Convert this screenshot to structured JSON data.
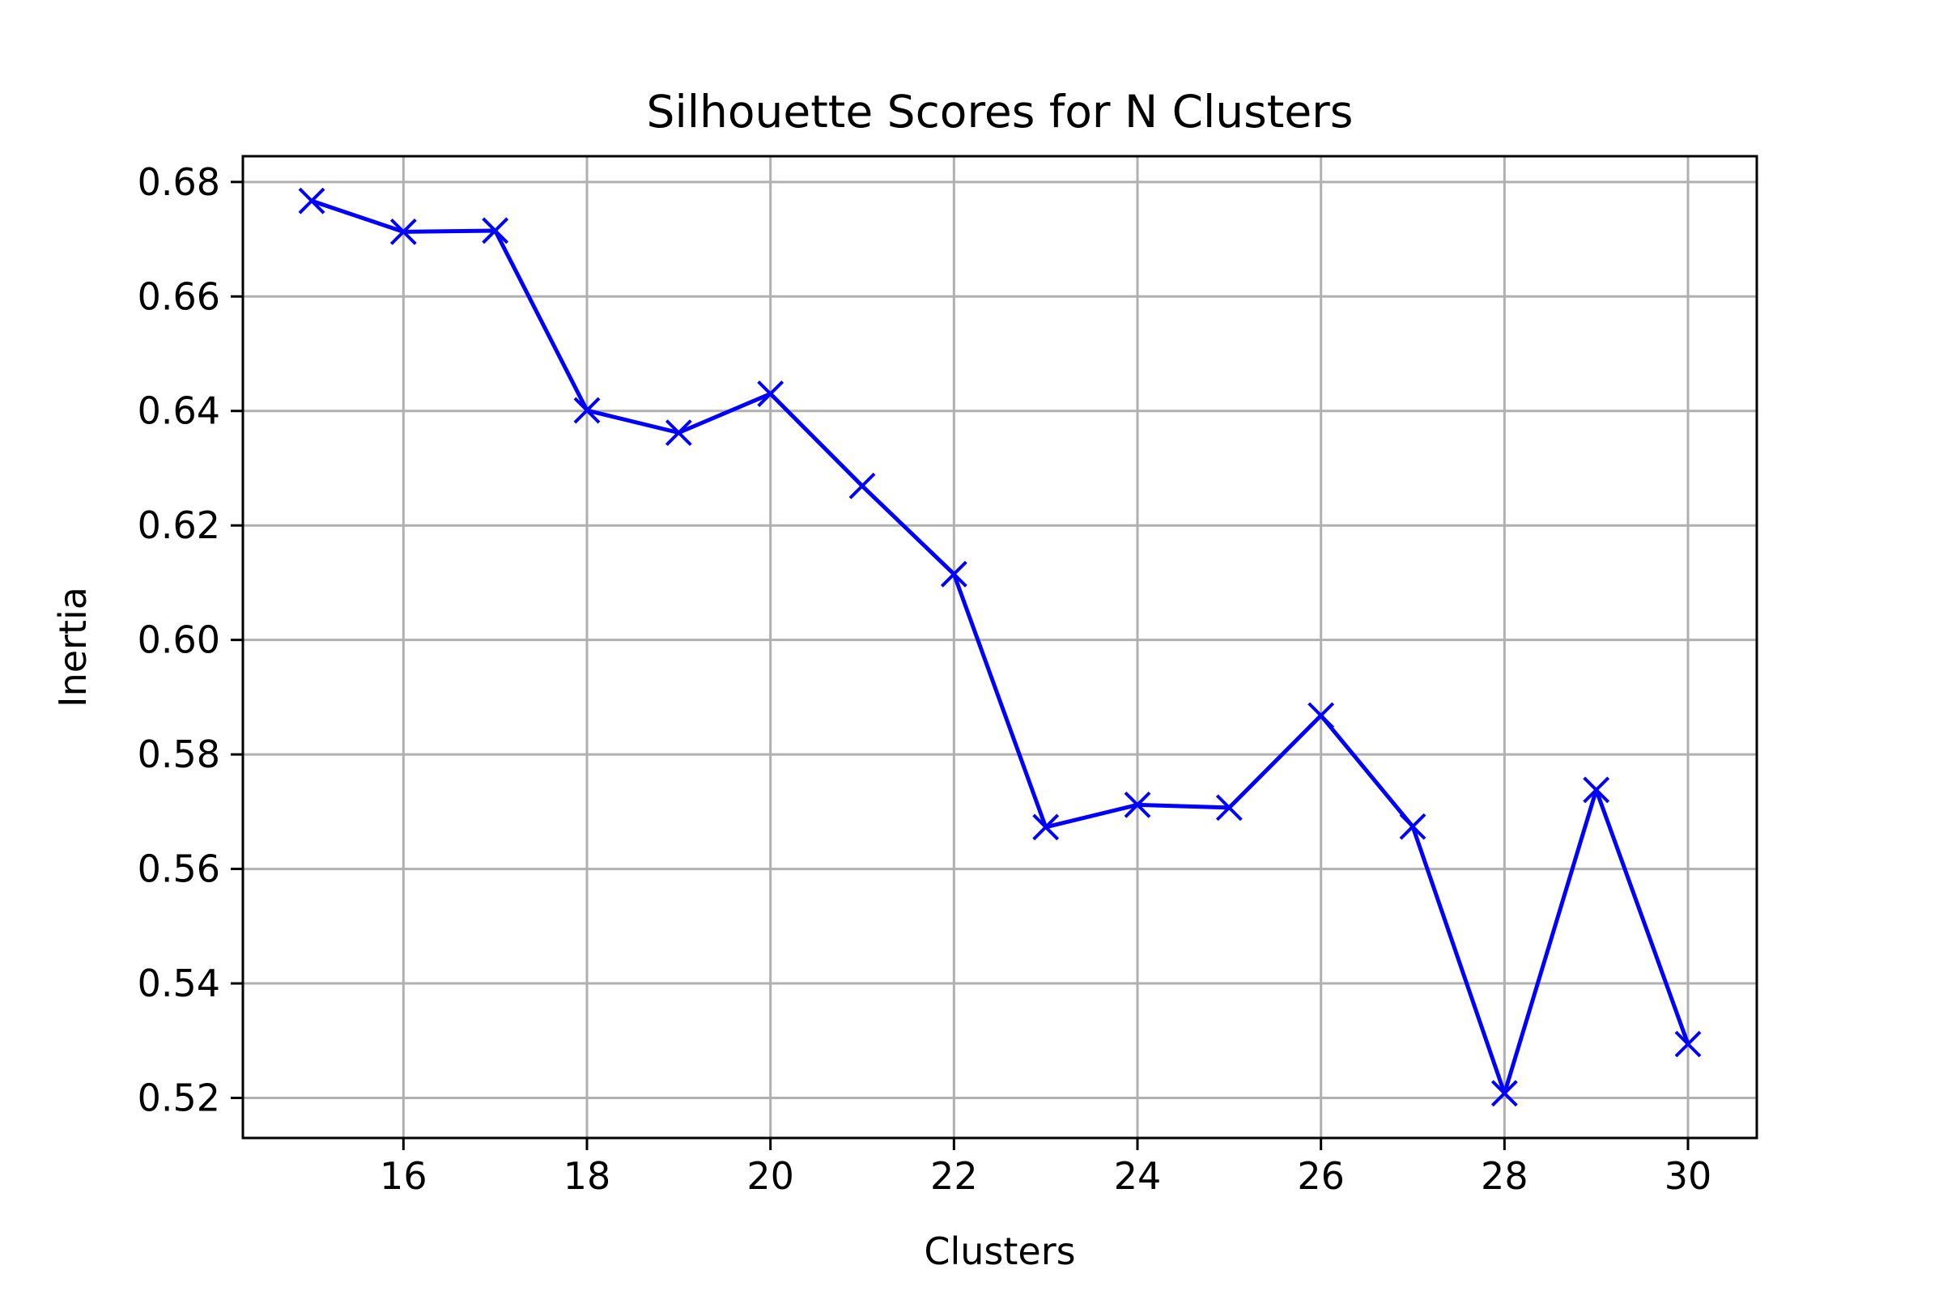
{
  "chart_data": {
    "type": "line",
    "title": "Silhouette Scores for N Clusters",
    "xlabel": "Clusters",
    "ylabel": "Inertia",
    "x": [
      15,
      16,
      17,
      18,
      19,
      20,
      21,
      22,
      23,
      24,
      25,
      26,
      27,
      28,
      29,
      30
    ],
    "series": [
      {
        "values": [
          0.6767,
          0.6713,
          0.6715,
          0.6401,
          0.6362,
          0.643,
          0.6269,
          0.6115,
          0.5673,
          0.5712,
          0.5707,
          0.5868,
          0.5674,
          0.5208,
          0.5738,
          0.5294
        ],
        "color": "#0000ff",
        "marker": "x"
      }
    ],
    "xticks": [
      16,
      18,
      20,
      22,
      24,
      26,
      28,
      30
    ],
    "yticks": [
      0.52,
      0.54,
      0.56,
      0.58,
      0.6,
      0.62,
      0.64,
      0.66,
      0.68
    ],
    "ytick_labels": [
      "0.52",
      "0.54",
      "0.56",
      "0.58",
      "0.60",
      "0.62",
      "0.64",
      "0.66",
      "0.68"
    ],
    "xlim": [
      14.25,
      30.75
    ],
    "ylim": [
      0.513,
      0.6845
    ],
    "grid": true
  }
}
